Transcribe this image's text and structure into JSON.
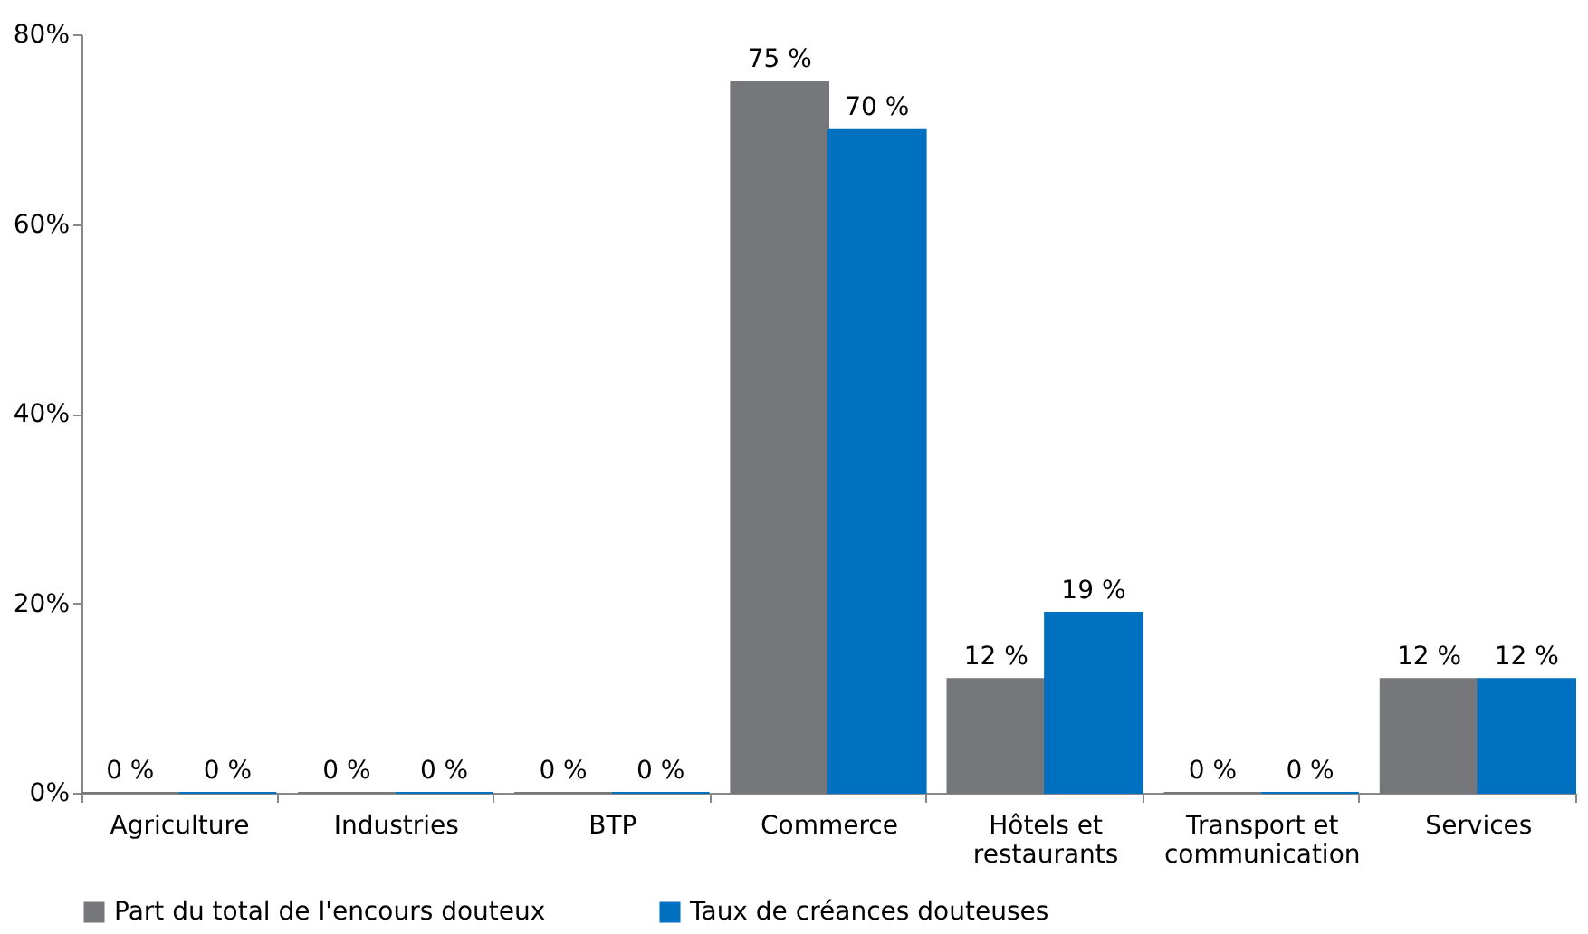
{
  "chart_data": {
    "type": "bar",
    "categories": [
      "Agriculture",
      "Industries",
      "BTP",
      "Commerce",
      "Hôtels et restaurants",
      "Transport et communication",
      "Services"
    ],
    "series": [
      {
        "name": "Part du total de l'encours douteux",
        "color": "#76777b",
        "values": [
          0,
          0,
          0,
          75,
          12,
          0,
          12
        ],
        "value_labels": [
          "0 %",
          "0 %",
          "0 %",
          "75 %",
          "12 %",
          "0 %",
          "12 %"
        ]
      },
      {
        "name": "Taux de créances douteuses",
        "color": "#0070c0",
        "values": [
          0,
          0,
          0,
          70,
          19,
          0,
          12
        ],
        "value_labels": [
          "0 %",
          "0 %",
          "0 %",
          "70 %",
          "19 %",
          "0 %",
          "12 %"
        ]
      }
    ],
    "ylim": [
      0,
      80
    ],
    "yticks": [
      {
        "value": 0,
        "label": "0%"
      },
      {
        "value": 20,
        "label": "20%"
      },
      {
        "value": 40,
        "label": "40%"
      },
      {
        "value": 60,
        "label": "60%"
      },
      {
        "value": 80,
        "label": "80%"
      }
    ],
    "grid": false,
    "legend": "bottom"
  }
}
